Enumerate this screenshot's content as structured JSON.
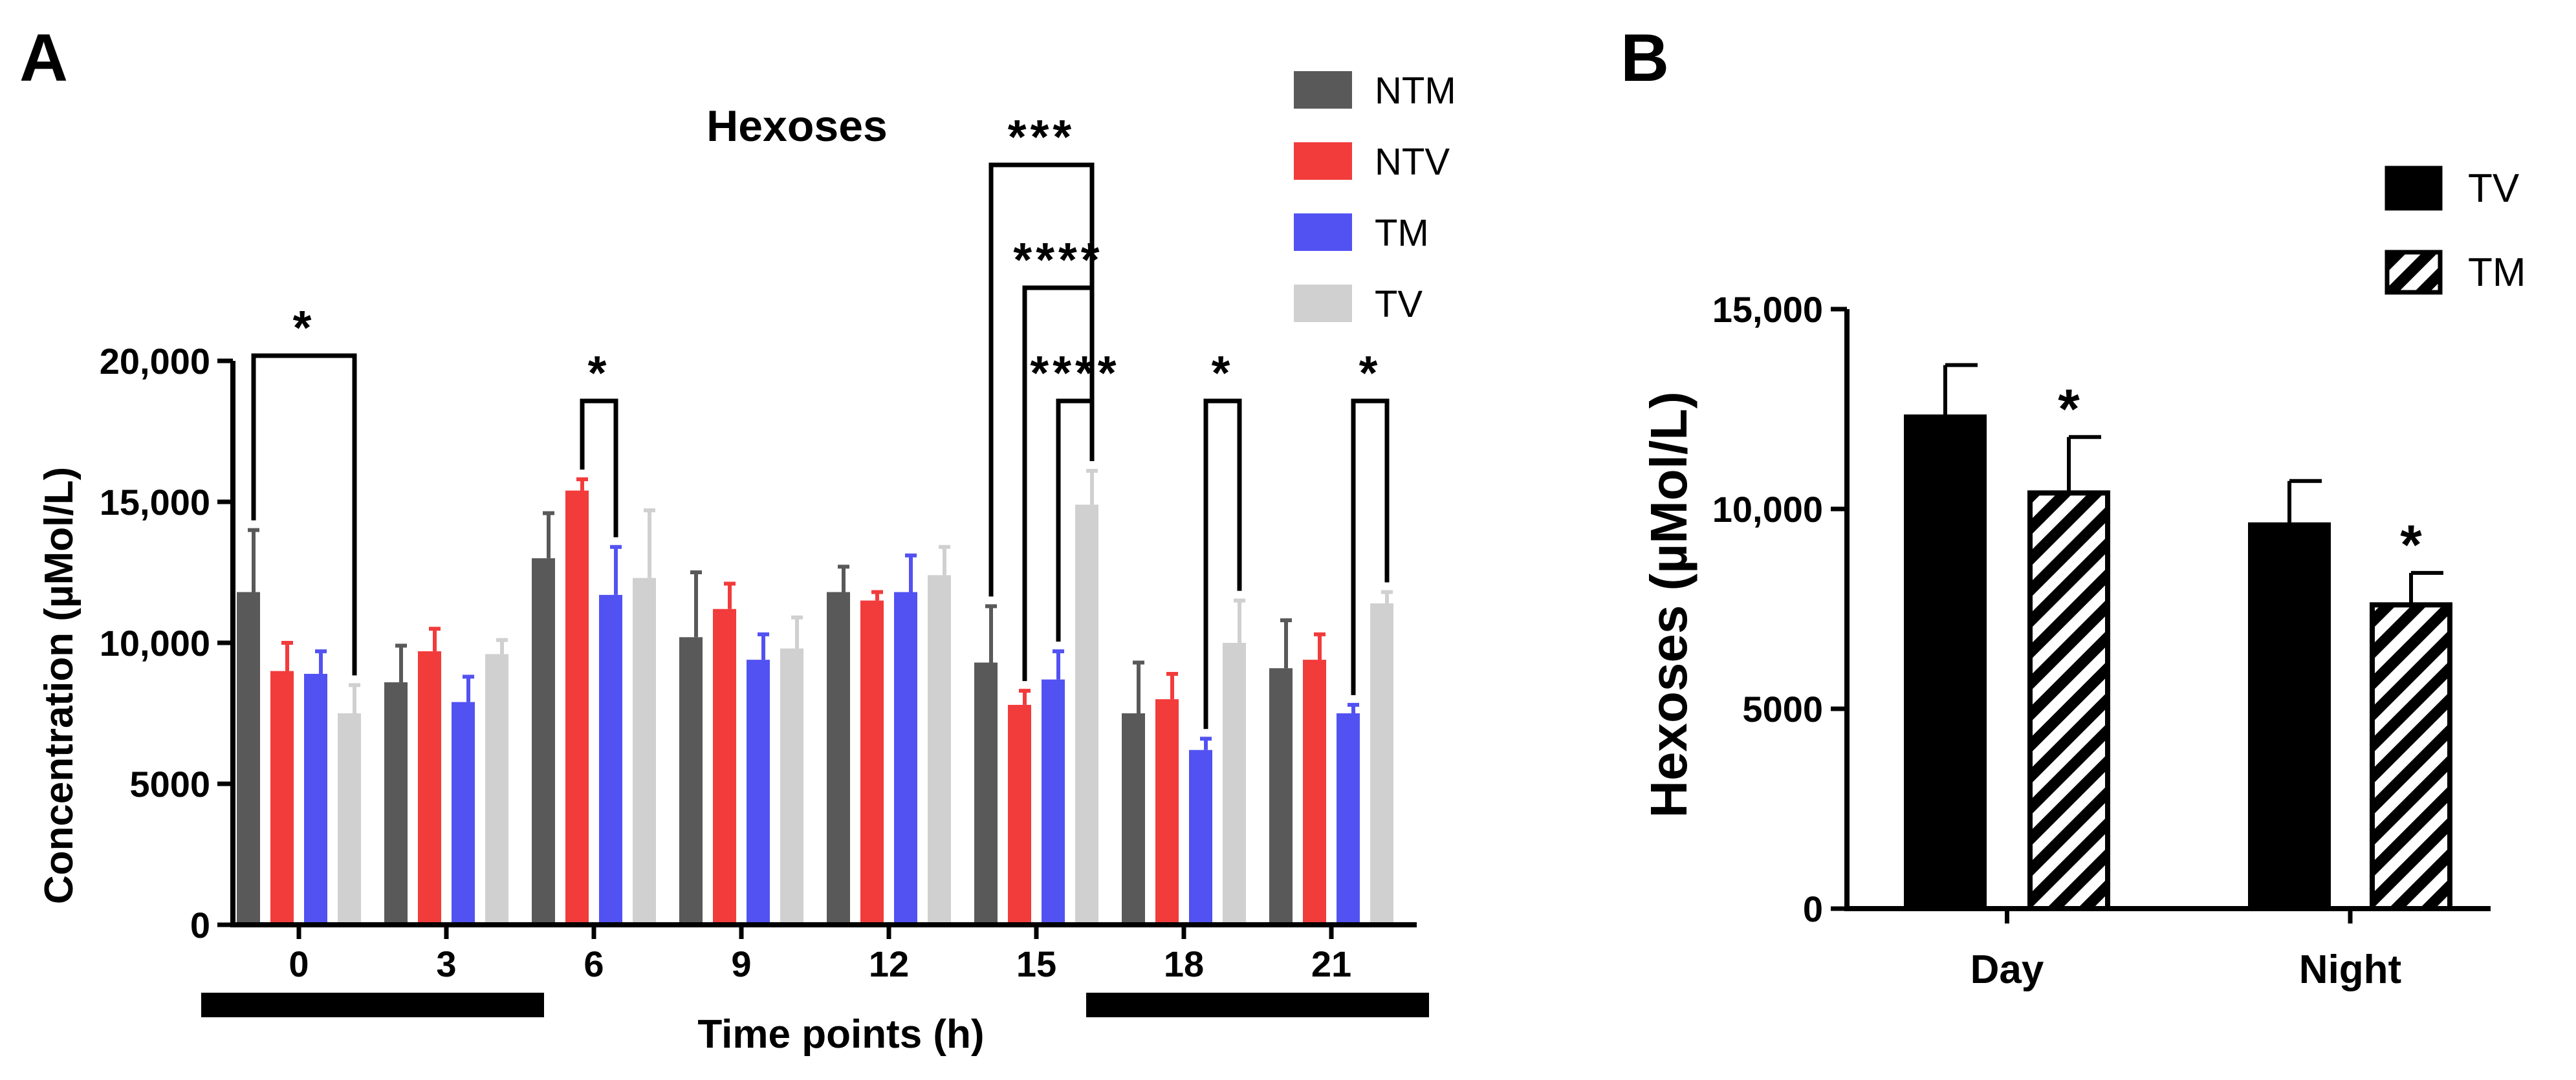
{
  "chart_data": [
    {
      "panel_label": "A",
      "type": "bar",
      "title": "Hexoses",
      "xlabel": "Time points (h)",
      "ylabel": "Concentration (µMol/L)",
      "ylim": [
        0,
        20000
      ],
      "yticks": [
        {
          "value": 0,
          "label": "0"
        },
        {
          "value": 5000,
          "label": "5000"
        },
        {
          "value": 10000,
          "label": "10,000"
        },
        {
          "value": 15000,
          "label": "15,000"
        },
        {
          "value": 20000,
          "label": "20,000"
        }
      ],
      "categories": [
        "0",
        "3",
        "6",
        "9",
        "12",
        "15",
        "18",
        "21"
      ],
      "legend_position": "top-right",
      "series": [
        {
          "name": "NTM",
          "color": "#595959",
          "values": [
            11800,
            8600,
            13000,
            10200,
            11800,
            9300,
            7500,
            9100
          ],
          "errors": [
            2200,
            1300,
            1600,
            2300,
            900,
            2000,
            1800,
            1700
          ]
        },
        {
          "name": "NTV",
          "color": "#f23b3b",
          "values": [
            9000,
            9700,
            15400,
            11200,
            11500,
            7800,
            8000,
            9400
          ],
          "errors": [
            1000,
            800,
            400,
            900,
            300,
            500,
            900,
            900
          ]
        },
        {
          "name": "TM",
          "color": "#5252f2",
          "values": [
            8900,
            7900,
            11700,
            9400,
            11800,
            8700,
            6200,
            7500
          ],
          "errors": [
            800,
            900,
            1700,
            900,
            1300,
            1000,
            400,
            300
          ]
        },
        {
          "name": "TV",
          "color": "#d0d0d0",
          "values": [
            7500,
            9600,
            12300,
            9800,
            12400,
            14900,
            10000,
            11400
          ],
          "errors": [
            1000,
            500,
            2400,
            1100,
            1000,
            1200,
            1500,
            400
          ]
        }
      ],
      "significance": [
        {
          "category": "0",
          "from_series": "NTM",
          "to_series": "TV",
          "label": "*"
        },
        {
          "category": "6",
          "from_series": "NTV",
          "to_series": "TM",
          "label": "*"
        },
        {
          "category": "15",
          "from_series": "NTM",
          "to_series": "TV",
          "label": "***"
        },
        {
          "category": "15",
          "from_series": "NTV",
          "to_series": "TV",
          "label": "****"
        },
        {
          "category": "15",
          "from_series": "TM",
          "to_series": "TV",
          "label": "****"
        },
        {
          "category": "18",
          "from_series": "TM",
          "to_series": "TV",
          "label": "*"
        },
        {
          "category": "21",
          "from_series": "TM",
          "to_series": "TV",
          "label": "*"
        }
      ],
      "dark_periods": [
        {
          "start_category": "0",
          "end_category": "3"
        },
        {
          "start_category": "18",
          "end_category": "21"
        }
      ]
    },
    {
      "panel_label": "B",
      "type": "bar",
      "title": "",
      "xlabel": "",
      "ylabel": "Hexoses (µMol/L)",
      "ylim": [
        0,
        15000
      ],
      "yticks": [
        {
          "value": 0,
          "label": "0"
        },
        {
          "value": 5000,
          "label": "5000"
        },
        {
          "value": 10000,
          "label": "10,000"
        },
        {
          "value": 15000,
          "label": "15,000"
        }
      ],
      "categories": [
        "Day",
        "Night"
      ],
      "legend_position": "top-right",
      "series": [
        {
          "name": "TV",
          "color": "#000000",
          "pattern": "solid",
          "values": [
            12300,
            9600
          ],
          "errors": [
            1300,
            1100
          ]
        },
        {
          "name": "TM",
          "color": "#000000",
          "pattern": "hatched",
          "values": [
            10400,
            7600
          ],
          "errors": [
            1400,
            800
          ]
        }
      ],
      "significance_marks": [
        {
          "category": "Day",
          "series": "TM",
          "label": "*"
        },
        {
          "category": "Night",
          "series": "TM",
          "label": "*"
        }
      ]
    }
  ]
}
